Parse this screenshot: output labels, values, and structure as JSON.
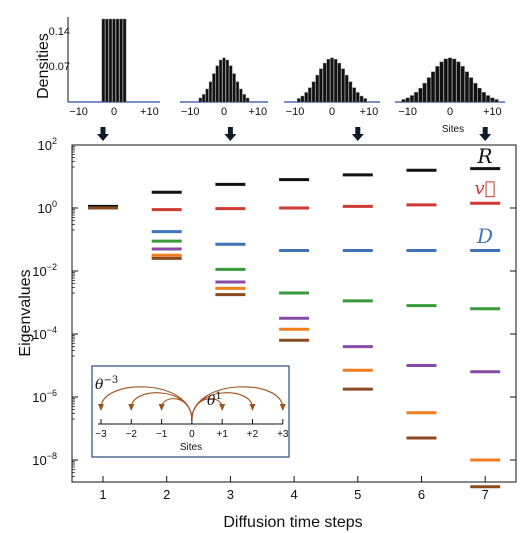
{
  "chart_data": [
    {
      "type": "bar",
      "panel": "densities",
      "ylabel": "Densities",
      "xlabel_last": "Sites",
      "y_ticks": [
        "0.14",
        "0.07"
      ],
      "x_ticks": [
        "−10",
        "0",
        "+10"
      ],
      "ylim": [
        0,
        0.16
      ],
      "xlim": [
        -13,
        13
      ],
      "arrow_time_steps": [
        1,
        3,
        5,
        7
      ],
      "histograms": [
        {
          "sigma": 0,
          "values": [
            0.16,
            0.16,
            0.16,
            0.16,
            0.16,
            0.16,
            0.16
          ]
        },
        {
          "sigma": 3.2
        },
        {
          "sigma": 4.0
        },
        {
          "sigma": 4.6
        }
      ]
    },
    {
      "type": "scatter",
      "panel": "eigenvalues",
      "xlabel": "Diffusion time steps",
      "ylabel": "Eigenvalues",
      "y_scale": "log",
      "ylim_log10": [
        -9,
        2
      ],
      "x_ticks": [
        "1",
        "2",
        "3",
        "4",
        "5",
        "6",
        "7"
      ],
      "y_ticks": [
        {
          "exp": 2,
          "base": "10",
          "sup": "2"
        },
        {
          "exp": 0,
          "base": "10",
          "sup": "0"
        },
        {
          "exp": -2,
          "base": "10",
          "sup": "−2"
        },
        {
          "exp": -4,
          "base": "10",
          "sup": "−4"
        },
        {
          "exp": -6,
          "base": "10",
          "sup": "−6"
        },
        {
          "exp": -8,
          "base": "10",
          "sup": "−8"
        }
      ],
      "series": [
        {
          "name": "R",
          "color": "#111111",
          "log10_values": [
            0.05,
            0.5,
            0.75,
            0.9,
            1.05,
            1.2,
            1.25
          ]
        },
        {
          "name": "v",
          "color": "#cf3a33",
          "log10_values": [
            0.0,
            -0.05,
            -0.02,
            0.0,
            0.05,
            0.1,
            0.15
          ]
        },
        {
          "name": "D",
          "color": "#3d74b8",
          "log10_values": [
            0.0,
            -0.75,
            -1.15,
            -1.35,
            -1.35,
            -1.35,
            -1.35
          ]
        },
        {
          "name": "",
          "color": "#3a9a3a",
          "log10_values": [
            0.0,
            -1.05,
            -1.95,
            -2.7,
            -2.95,
            -3.1,
            -3.2
          ]
        },
        {
          "name": "",
          "color": "#8a4aa8",
          "log10_values": [
            0.0,
            -1.3,
            -2.35,
            -3.5,
            -4.4,
            -5.0,
            -5.2
          ]
        },
        {
          "name": "",
          "color": "#f07f1e",
          "log10_values": [
            0.0,
            -1.5,
            -2.55,
            -3.85,
            -5.15,
            -6.5,
            -8.0
          ]
        },
        {
          "name": "",
          "color": "#8c4a20",
          "log10_values": [
            0.0,
            -1.6,
            -2.75,
            -4.2,
            -5.75,
            -7.3,
            -8.85
          ]
        }
      ],
      "labels": {
        "R": "R",
        "v": "v⃗",
        "D": "D"
      }
    }
  ],
  "inset": {
    "xlabel": "Sites",
    "ticks": [
      "−3",
      "−2",
      "−1",
      "0",
      "+1",
      "+2",
      "+3"
    ],
    "label_left": "θ",
    "label_left_sup": "−3",
    "label_right": "θ",
    "label_right_sup": "1",
    "arc_color": "#a0531c"
  }
}
